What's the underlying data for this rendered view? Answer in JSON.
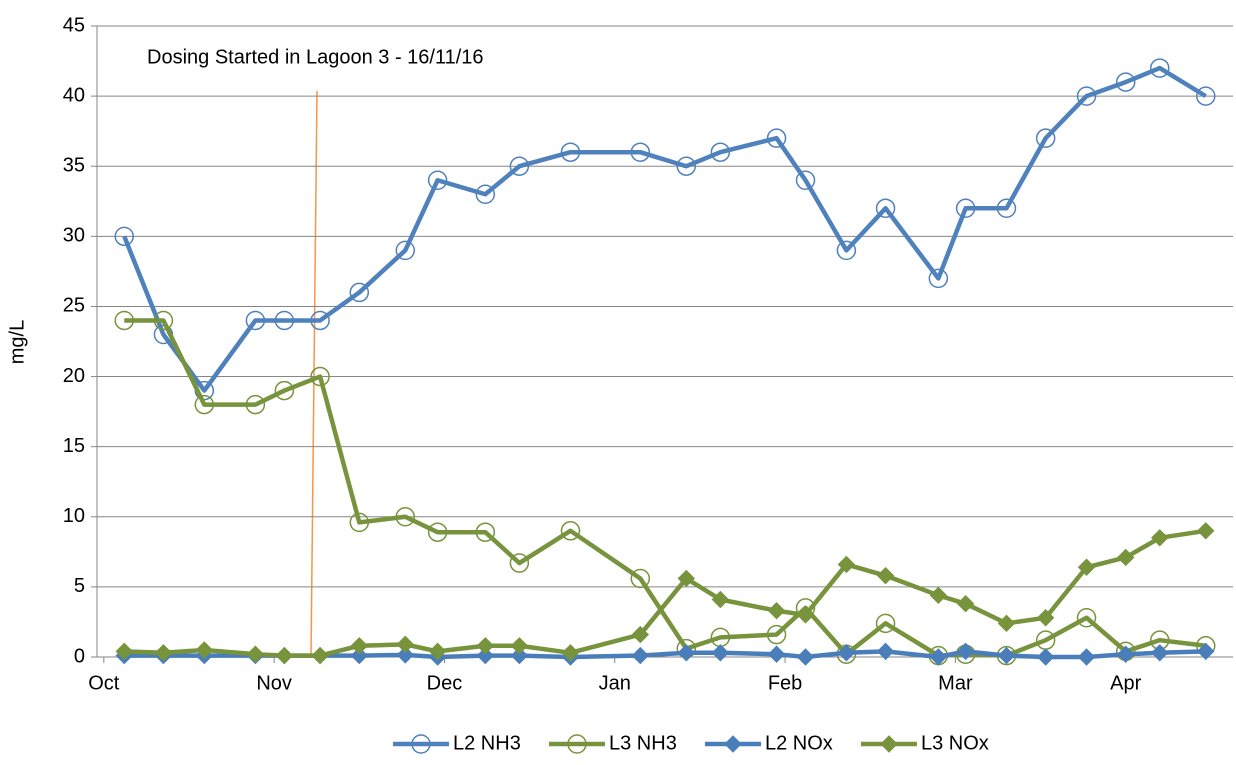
{
  "chart_data": {
    "type": "line",
    "annotation": "Dosing Started in Lagoon 3 - 16/11/16",
    "y_label": "mg/L",
    "x": [
      0.12,
      0.35,
      0.59,
      0.89,
      1.06,
      1.27,
      1.5,
      1.77,
      1.96,
      2.24,
      2.44,
      2.74,
      3.15,
      3.42,
      3.62,
      3.95,
      4.12,
      4.36,
      4.59,
      4.9,
      5.06,
      5.3,
      5.53,
      5.77,
      6.0,
      6.2,
      6.47
    ],
    "xlim": [
      -0.04,
      6.63
    ],
    "xticks": [
      {
        "value": 0,
        "label": "Oct"
      },
      {
        "value": 1,
        "label": "Nov"
      },
      {
        "value": 2,
        "label": "Dec"
      },
      {
        "value": 3,
        "label": "Jan"
      },
      {
        "value": 4,
        "label": "Feb"
      },
      {
        "value": 5,
        "label": "Mar"
      },
      {
        "value": 6,
        "label": "Apr"
      }
    ],
    "ylim": [
      0,
      45
    ],
    "yticks": [
      0,
      5,
      10,
      15,
      20,
      25,
      30,
      35,
      40,
      45
    ],
    "grid": true,
    "legend": "bottom",
    "series": [
      {
        "name": "L2 NH3",
        "color": "#4f81bd",
        "marker": "circle-open",
        "values": [
          30,
          23,
          19,
          24,
          24,
          24,
          26,
          29,
          34,
          33,
          35,
          36,
          36,
          35,
          36,
          37,
          34,
          29,
          32,
          27,
          32,
          32,
          37,
          40,
          41,
          42,
          40
        ]
      },
      {
        "name": "L3 NH3",
        "color": "#77933c",
        "marker": "circle-open",
        "values": [
          24,
          24,
          18,
          18,
          19,
          20,
          9.6,
          10,
          8.9,
          8.9,
          6.7,
          9,
          5.6,
          0.6,
          1.4,
          1.6,
          3.5,
          0.2,
          2.4,
          0.1,
          0.2,
          0.1,
          1.2,
          2.8,
          0.4,
          1.2,
          0.8
        ]
      },
      {
        "name": "L2 NOx",
        "color": "#4a7ebb",
        "marker": "diamond",
        "values": [
          0.1,
          0.1,
          0.1,
          0.1,
          0.1,
          0.1,
          0.1,
          0.15,
          0,
          0.1,
          0.1,
          0,
          0.1,
          0.3,
          0.3,
          0.2,
          0,
          0.3,
          0.4,
          0,
          0.4,
          0.1,
          0,
          0,
          0.2,
          0.3,
          0.4
        ]
      },
      {
        "name": "L3 NOx",
        "color": "#77933c",
        "marker": "diamond",
        "values": [
          0.4,
          0.3,
          0.5,
          0.2,
          0.1,
          0.1,
          0.8,
          0.9,
          0.4,
          0.8,
          0.8,
          0.3,
          1.6,
          5.6,
          4.1,
          3.3,
          3.0,
          6.6,
          5.8,
          4.4,
          3.8,
          2.4,
          2.8,
          6.4,
          7.1,
          8.5,
          9.0
        ]
      }
    ]
  }
}
